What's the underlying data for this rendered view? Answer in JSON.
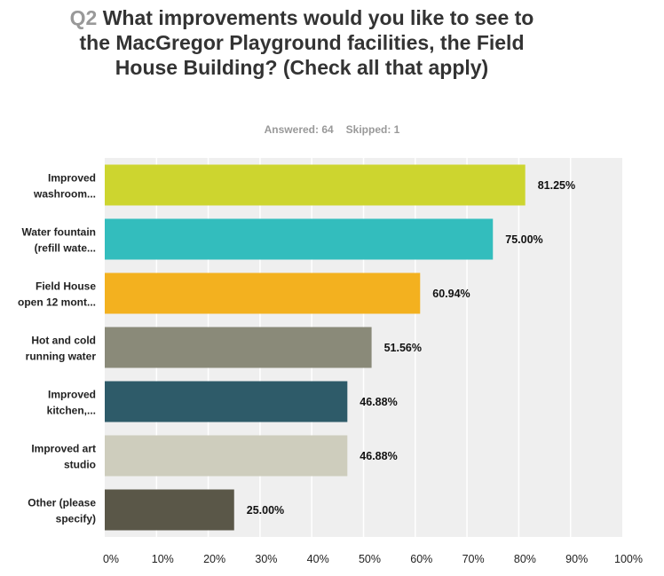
{
  "question": {
    "number": "Q2",
    "text": "What improvements would you like to see to the MacGregor Playground facilities, the Field House Building? (Check all that apply)"
  },
  "stats": {
    "answered": "Answered: 64",
    "skipped": "Skipped: 1"
  },
  "chart_data": {
    "type": "bar",
    "orientation": "horizontal",
    "title": "What improvements would you like to see to the MacGregor Playground facilities, the Field House Building? (Check all that apply)",
    "xlabel": "",
    "ylabel": "",
    "xlim": [
      0,
      100
    ],
    "grid": true,
    "categories": [
      [
        "Improved",
        "washroom..."
      ],
      [
        "Water fountain",
        "(refill wate..."
      ],
      [
        "Field House",
        "open 12 mont..."
      ],
      [
        "Hot and cold",
        "running water"
      ],
      [
        "Improved",
        "kitchen,..."
      ],
      [
        "Improved art",
        "studio"
      ],
      [
        "Other (please",
        "specify)"
      ]
    ],
    "values": [
      81.25,
      75.0,
      60.94,
      51.56,
      46.88,
      46.88,
      25.0
    ],
    "value_labels": [
      "81.25%",
      "75.00%",
      "60.94%",
      "51.56%",
      "46.88%",
      "46.88%",
      "25.00%"
    ],
    "colors": [
      "#cdd52f",
      "#33bdbd",
      "#f3b11f",
      "#8a8a79",
      "#2e5b69",
      "#cecdbd",
      "#5a5748"
    ],
    "ticks": [
      "0%",
      "10%",
      "20%",
      "30%",
      "40%",
      "50%",
      "60%",
      "70%",
      "80%",
      "90%",
      "100%"
    ]
  },
  "style": {
    "plot_background": "#efefef",
    "gridline_color": "#ffffff"
  }
}
